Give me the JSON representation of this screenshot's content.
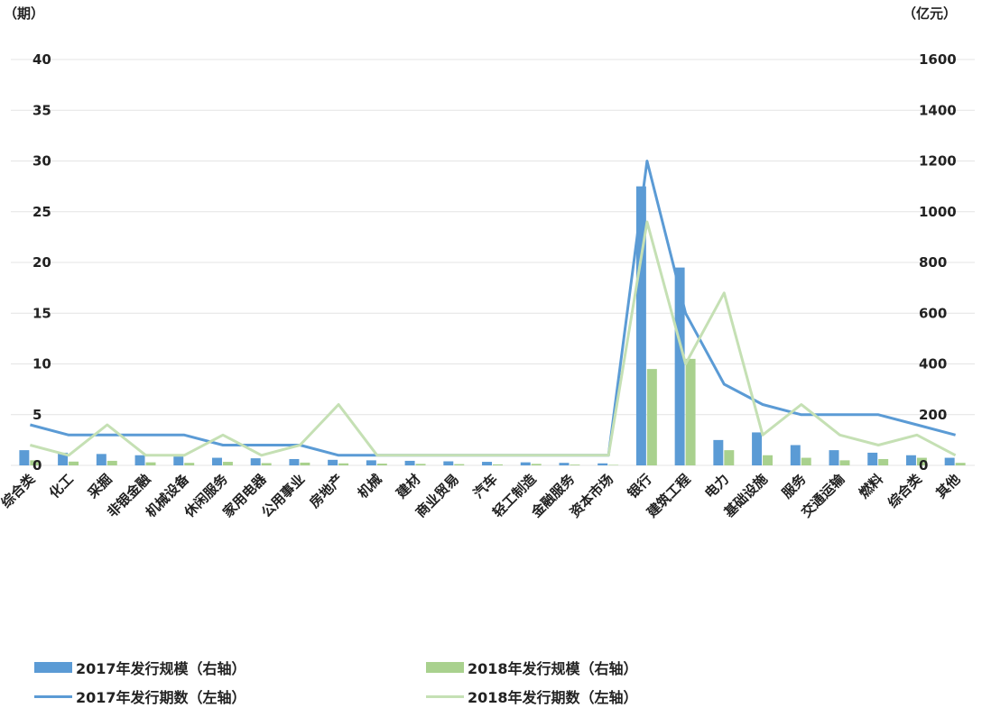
{
  "chart_data": {
    "type": "bar+line",
    "left_axis": {
      "unit": "（期）",
      "ticks": [
        "0",
        "5",
        "10",
        "15",
        "20",
        "25",
        "30",
        "35",
        "40"
      ],
      "range": [
        0,
        40
      ]
    },
    "right_axis": {
      "unit": "（亿元）",
      "ticks": [
        "0",
        "200",
        "400",
        "600",
        "800",
        "1000",
        "1200",
        "1400",
        "1600"
      ],
      "range": [
        0,
        1600
      ]
    },
    "categories": [
      "综合类",
      "化工",
      "采掘",
      "非银金融",
      "机械设备",
      "休闲服务",
      "家用电器",
      "公用事业",
      "房地产",
      "机械",
      "建材",
      "商业贸易",
      "汽车",
      "轻工制造",
      "金融服务",
      "资本市场",
      "银行",
      "建筑工程",
      "电力",
      "基础设施",
      "服务",
      "交通运输",
      "燃料",
      "综合类",
      "其他"
    ],
    "series": [
      {
        "name": "2017年发行规模（右轴）",
        "kind": "bar",
        "axis": "right",
        "color": "#5b9bd5",
        "values": [
          60,
          50,
          45,
          40,
          35,
          30,
          28,
          25,
          22,
          20,
          18,
          16,
          14,
          12,
          10,
          8,
          1100,
          780,
          100,
          130,
          80,
          60,
          50,
          40,
          30
        ]
      },
      {
        "name": "2018年发行规模（右轴）",
        "kind": "bar",
        "axis": "right",
        "color": "#a9d18e",
        "values": [
          20,
          15,
          18,
          12,
          10,
          14,
          9,
          11,
          8,
          7,
          6,
          5,
          4,
          6,
          3,
          2,
          380,
          420,
          60,
          40,
          30,
          20,
          25,
          30,
          10
        ]
      },
      {
        "name": "2017年发行期数（左轴）",
        "kind": "line",
        "axis": "left",
        "color": "#5b9bd5",
        "values": [
          4,
          3,
          3,
          3,
          3,
          2,
          2,
          2,
          1,
          1,
          1,
          1,
          1,
          1,
          1,
          1,
          30,
          15,
          8,
          6,
          5,
          5,
          5,
          4,
          3
        ]
      },
      {
        "name": "2018年发行期数（左轴）",
        "kind": "line",
        "axis": "left",
        "color": "#c5e0b4",
        "values": [
          2,
          1,
          4,
          1,
          1,
          3,
          1,
          2,
          6,
          1,
          1,
          1,
          1,
          1,
          1,
          1,
          24,
          10,
          17,
          3,
          6,
          3,
          2,
          3,
          1
        ]
      }
    ]
  }
}
